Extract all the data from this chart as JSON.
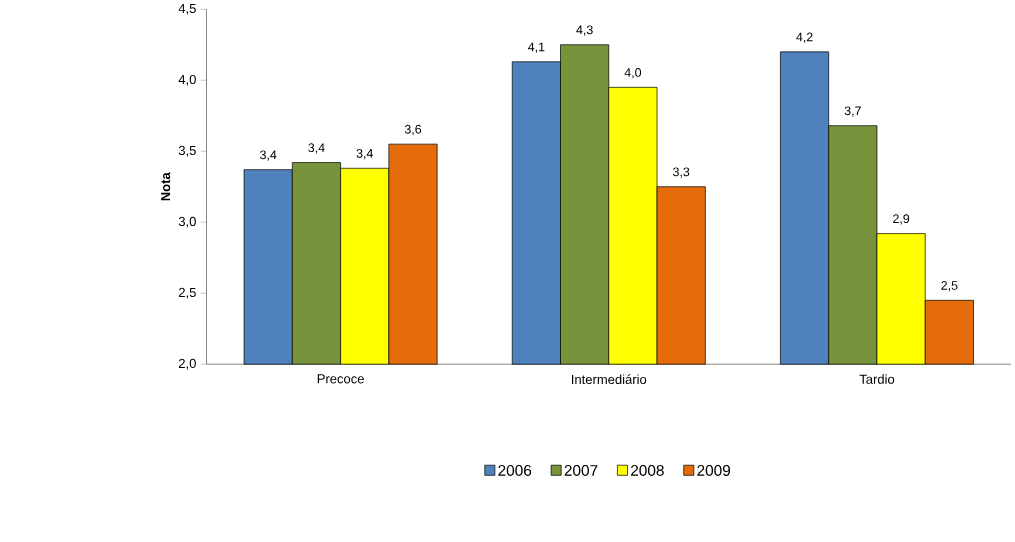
{
  "chart_data": {
    "type": "bar",
    "ylabel": "**Nota**",
    "categories": [
      "Precoce",
      "Intermediário",
      "Tardio"
    ],
    "series": [
      {
        "name": "2006",
        "color": "#4f81bd",
        "values": [
          3.37,
          4.13,
          4.2
        ],
        "value_labels": [
          "3,4",
          "4,1",
          "4,2"
        ]
      },
      {
        "name": "2007",
        "color": "#77933c",
        "values": [
          3.42,
          4.25,
          3.68
        ],
        "value_labels": [
          "3,4",
          "4,3",
          "3,7"
        ]
      },
      {
        "name": "2008",
        "color": "#ffff00",
        "values": [
          3.38,
          3.95,
          2.92
        ],
        "value_labels": [
          "3,4",
          "4,0",
          "2,9"
        ]
      },
      {
        "name": "2009",
        "color": "#e46c0a",
        "values": [
          3.55,
          3.25,
          2.45
        ],
        "value_labels": [
          "3,6",
          "3,3",
          "2,5"
        ]
      }
    ],
    "ylim": [
      2.0,
      4.5
    ],
    "yticks": [
      {
        "value": 2.0,
        "label": "2,0"
      },
      {
        "value": 2.5,
        "label": "2,5"
      },
      {
        "value": 3.0,
        "label": "3,0"
      },
      {
        "value": 3.5,
        "label": "3,5"
      },
      {
        "value": 4.0,
        "label": "4,0"
      },
      {
        "value": 4.5,
        "label": "4,5"
      }
    ],
    "grid": false,
    "legend": "bottom"
  }
}
